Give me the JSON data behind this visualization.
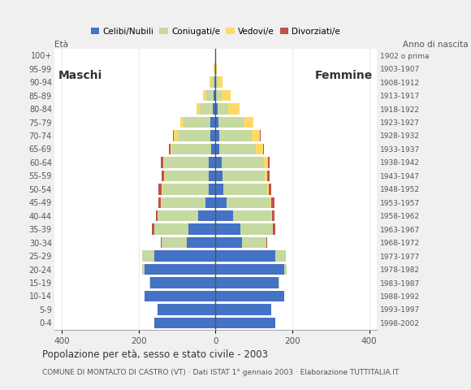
{
  "age_groups": [
    "0-4",
    "5-9",
    "10-14",
    "15-19",
    "20-24",
    "25-29",
    "30-34",
    "35-39",
    "40-44",
    "45-49",
    "50-54",
    "55-59",
    "60-64",
    "65-69",
    "70-74",
    "75-79",
    "80-84",
    "85-89",
    "90-94",
    "95-99",
    "100+"
  ],
  "birth_years": [
    "1998-2002",
    "1993-1997",
    "1988-1992",
    "1983-1987",
    "1978-1982",
    "1973-1977",
    "1968-1972",
    "1963-1967",
    "1958-1962",
    "1953-1957",
    "1948-1952",
    "1943-1947",
    "1938-1942",
    "1933-1937",
    "1928-1932",
    "1923-1927",
    "1918-1922",
    "1913-1917",
    "1908-1912",
    "1903-1907",
    "1902 o prima"
  ],
  "male_celibi": [
    160,
    150,
    185,
    170,
    185,
    160,
    75,
    70,
    45,
    26,
    18,
    17,
    18,
    12,
    14,
    14,
    8,
    5,
    3,
    1,
    0
  ],
  "male_coniugati": [
    0,
    0,
    0,
    2,
    5,
    30,
    65,
    90,
    105,
    115,
    120,
    115,
    115,
    100,
    85,
    70,
    32,
    18,
    8,
    2,
    0
  ],
  "male_vedovi": [
    0,
    0,
    0,
    0,
    0,
    0,
    0,
    0,
    0,
    1,
    2,
    2,
    4,
    6,
    10,
    8,
    10,
    10,
    5,
    1,
    0
  ],
  "male_divorziati": [
    0,
    0,
    0,
    0,
    0,
    1,
    2,
    5,
    5,
    6,
    8,
    6,
    5,
    4,
    2,
    0,
    0,
    0,
    0,
    0,
    0
  ],
  "female_celibi": [
    155,
    145,
    180,
    165,
    180,
    155,
    70,
    65,
    46,
    28,
    20,
    18,
    16,
    10,
    10,
    8,
    5,
    2,
    1,
    0,
    0
  ],
  "female_coniugati": [
    0,
    0,
    0,
    2,
    5,
    28,
    62,
    85,
    100,
    115,
    115,
    110,
    110,
    95,
    85,
    65,
    28,
    15,
    5,
    1,
    0
  ],
  "female_vedovi": [
    0,
    0,
    0,
    0,
    0,
    0,
    0,
    0,
    1,
    2,
    4,
    6,
    10,
    18,
    20,
    25,
    30,
    22,
    12,
    3,
    0
  ],
  "female_divorziati": [
    0,
    0,
    0,
    0,
    0,
    1,
    3,
    6,
    6,
    8,
    7,
    6,
    4,
    3,
    2,
    0,
    0,
    0,
    0,
    0,
    0
  ],
  "colors": {
    "celibi": "#4472c4",
    "coniugati": "#c5d9a0",
    "vedovi": "#ffd966",
    "divorziati": "#c0504d"
  },
  "xlim": 420,
  "title": "Popolazione per età, sesso e stato civile - 2003",
  "subtitle": "COMUNE DI MONTALTO DI CASTRO (VT) · Dati ISTAT 1° gennaio 2003 · Elaborazione TUTTITALIA.IT",
  "ylabel_left": "Età",
  "ylabel_right": "Anno di nascita",
  "label_maschi": "Maschi",
  "label_femmine": "Femmine",
  "bg_color": "#f0f0f0",
  "plot_bg_color": "#ffffff"
}
